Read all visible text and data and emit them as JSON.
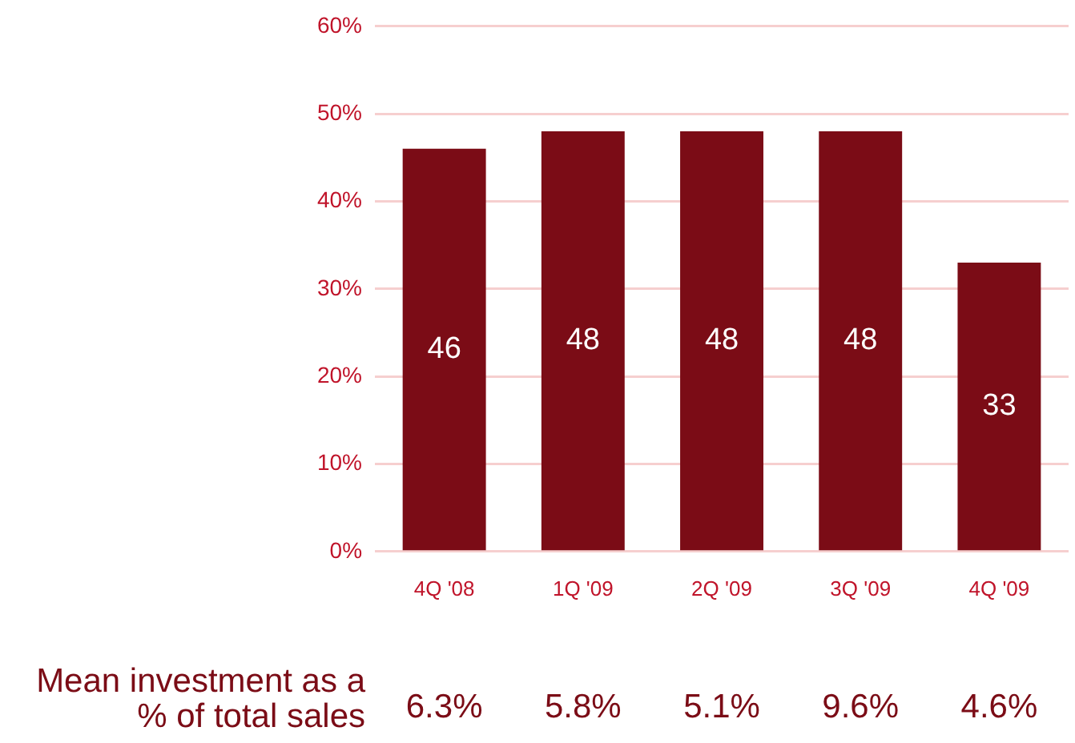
{
  "chart_data": {
    "type": "bar",
    "categories": [
      "4Q '08",
      "1Q '09",
      "2Q '09",
      "3Q '09",
      "4Q '09"
    ],
    "values": [
      46,
      48,
      48,
      48,
      33
    ],
    "color": "#7b0c16",
    "ylim": [
      0,
      60
    ],
    "yticks": [
      {
        "value": 0,
        "label": "0%"
      },
      {
        "value": 10,
        "label": "10%"
      },
      {
        "value": 20,
        "label": "20%"
      },
      {
        "value": 30,
        "label": "30%"
      },
      {
        "value": 40,
        "label": "40%"
      },
      {
        "value": 50,
        "label": "50%"
      },
      {
        "value": 60,
        "label": "60%"
      }
    ],
    "grid": "y",
    "data_labels": true,
    "annotations": [
      "Mean investment as a % of total sales",
      "6.3%",
      "5.8%",
      "5.1%",
      "9.6%",
      "4.6%"
    ]
  }
}
